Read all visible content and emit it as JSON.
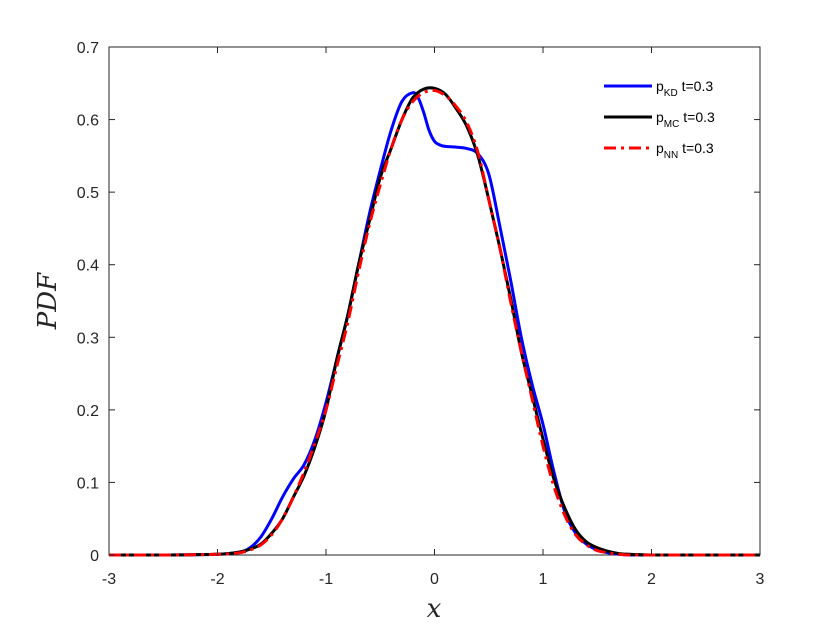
{
  "chart_data": {
    "type": "line",
    "xlabel": "x",
    "ylabel": "PDF",
    "xlim": [
      -3,
      3
    ],
    "ylim": [
      0,
      0.7
    ],
    "xticks": [
      -3,
      -2,
      -1,
      0,
      1,
      2,
      3
    ],
    "yticks": [
      0,
      0.1,
      0.2,
      0.3,
      0.4,
      0.5,
      0.6,
      0.7
    ],
    "xtick_labels": [
      "-3",
      "-2",
      "-1",
      "0",
      "1",
      "2",
      "3"
    ],
    "ytick_labels": [
      "0",
      "0.1",
      "0.2",
      "0.3",
      "0.4",
      "0.5",
      "0.6",
      "0.7"
    ],
    "grid": false,
    "legend_position": "top-right",
    "series": [
      {
        "name": "p_KD t=0.3",
        "label_main": "p",
        "label_sub": "KD",
        "label_rest": " t=0.3",
        "color": "#0000ff",
        "dash": "solid",
        "x": [
          -3,
          -2.5,
          -2,
          -1.8,
          -1.7,
          -1.6,
          -1.5,
          -1.4,
          -1.3,
          -1.2,
          -1.1,
          -1,
          -0.9,
          -0.8,
          -0.7,
          -0.6,
          -0.5,
          -0.4,
          -0.3,
          -0.2,
          -0.15,
          -0.1,
          -0.05,
          0,
          0.05,
          0.1,
          0.2,
          0.3,
          0.4,
          0.5,
          0.6,
          0.7,
          0.8,
          0.9,
          1,
          1.1,
          1.2,
          1.3,
          1.4,
          1.5,
          1.6,
          1.7,
          1.8,
          2,
          2.5,
          3
        ],
        "y": [
          0,
          0,
          0.001,
          0.004,
          0.01,
          0.025,
          0.05,
          0.08,
          0.105,
          0.125,
          0.16,
          0.21,
          0.27,
          0.33,
          0.4,
          0.47,
          0.53,
          0.585,
          0.625,
          0.637,
          0.63,
          0.61,
          0.585,
          0.57,
          0.565,
          0.563,
          0.562,
          0.56,
          0.553,
          0.525,
          0.455,
          0.38,
          0.3,
          0.235,
          0.18,
          0.115,
          0.06,
          0.03,
          0.015,
          0.007,
          0.003,
          0.001,
          0,
          0,
          0,
          0
        ]
      },
      {
        "name": "p_MC t=0.3",
        "label_main": "p",
        "label_sub": "MC",
        "label_rest": " t=0.3",
        "color": "#000000",
        "dash": "solid",
        "x": [
          -3,
          -2.5,
          -2,
          -1.8,
          -1.7,
          -1.6,
          -1.5,
          -1.4,
          -1.3,
          -1.2,
          -1.1,
          -1,
          -0.9,
          -0.8,
          -0.7,
          -0.6,
          -0.5,
          -0.4,
          -0.3,
          -0.2,
          -0.1,
          0,
          0.1,
          0.2,
          0.3,
          0.4,
          0.5,
          0.6,
          0.7,
          0.8,
          0.9,
          1,
          1.1,
          1.2,
          1.3,
          1.4,
          1.5,
          1.6,
          1.7,
          1.8,
          2,
          2.5,
          3
        ],
        "y": [
          0,
          0,
          0.001,
          0.004,
          0.008,
          0.015,
          0.03,
          0.05,
          0.08,
          0.11,
          0.15,
          0.2,
          0.27,
          0.33,
          0.4,
          0.46,
          0.52,
          0.56,
          0.6,
          0.63,
          0.642,
          0.643,
          0.635,
          0.615,
          0.59,
          0.55,
          0.49,
          0.425,
          0.355,
          0.28,
          0.22,
          0.16,
          0.105,
          0.065,
          0.035,
          0.018,
          0.01,
          0.005,
          0.002,
          0.001,
          0,
          0,
          0
        ]
      },
      {
        "name": "p_NN t=0.3",
        "label_main": "p",
        "label_sub": "NN",
        "label_rest": " t=0.3",
        "color": "#ff0000",
        "dash": "dashdot",
        "x": [
          -3,
          -2.5,
          -2,
          -1.8,
          -1.7,
          -1.6,
          -1.5,
          -1.4,
          -1.3,
          -1.2,
          -1.1,
          -1,
          -0.9,
          -0.8,
          -0.7,
          -0.6,
          -0.5,
          -0.4,
          -0.3,
          -0.2,
          -0.1,
          0,
          0.1,
          0.2,
          0.3,
          0.4,
          0.5,
          0.6,
          0.7,
          0.8,
          0.9,
          1,
          1.1,
          1.2,
          1.3,
          1.4,
          1.5,
          1.6,
          1.7,
          1.8,
          2,
          2.5,
          3
        ],
        "y": [
          0,
          0,
          0.001,
          0.003,
          0.007,
          0.014,
          0.028,
          0.05,
          0.08,
          0.115,
          0.155,
          0.2,
          0.26,
          0.32,
          0.39,
          0.455,
          0.51,
          0.56,
          0.6,
          0.625,
          0.637,
          0.64,
          0.633,
          0.618,
          0.595,
          0.555,
          0.49,
          0.425,
          0.35,
          0.28,
          0.215,
          0.15,
          0.095,
          0.055,
          0.028,
          0.014,
          0.006,
          0.003,
          0.001,
          0,
          0,
          0,
          0
        ]
      }
    ]
  }
}
